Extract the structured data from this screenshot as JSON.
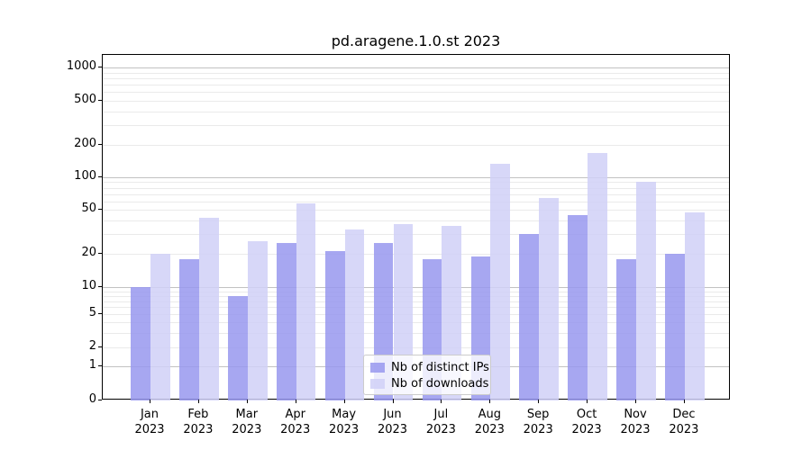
{
  "title": "pd.aragene.1.0.st 2023",
  "colors": {
    "ips_bar": "#9898ee",
    "downloads_bar": "#d0d0f7",
    "grid_major": "#c2c2c2",
    "grid_minor": "#eaeaea",
    "spine": "#000000"
  },
  "legend": {
    "items": [
      {
        "label": "Nb of distinct IPs",
        "series": "ips"
      },
      {
        "label": "Nb of downloads",
        "series": "downloads"
      }
    ]
  },
  "chart_data": {
    "type": "bar",
    "title": "pd.aragene.1.0.st 2023",
    "categories": [
      "Jan 2023",
      "Feb 2023",
      "Mar 2023",
      "Apr 2023",
      "May 2023",
      "Jun 2023",
      "Jul 2023",
      "Aug 2023",
      "Sep 2023",
      "Oct 2023",
      "Nov 2023",
      "Dec 2023"
    ],
    "series": [
      {
        "name": "Nb of distinct IPs",
        "key": "ips",
        "values": [
          10,
          18,
          8,
          25,
          21,
          25,
          18,
          19,
          30,
          45,
          18,
          20
        ]
      },
      {
        "name": "Nb of downloads",
        "key": "downloads",
        "values": [
          20,
          42,
          26,
          57,
          33,
          37,
          36,
          133,
          64,
          167,
          90,
          47
        ]
      }
    ],
    "xlabel": "",
    "ylabel": "",
    "yscale": "symlog",
    "ytick_values": [
      0,
      1,
      2,
      5,
      10,
      20,
      50,
      100,
      200,
      500,
      1000
    ],
    "ylim": [
      0,
      1300
    ],
    "grid": "horizontal, minor and major",
    "legend_position": "lower center"
  }
}
